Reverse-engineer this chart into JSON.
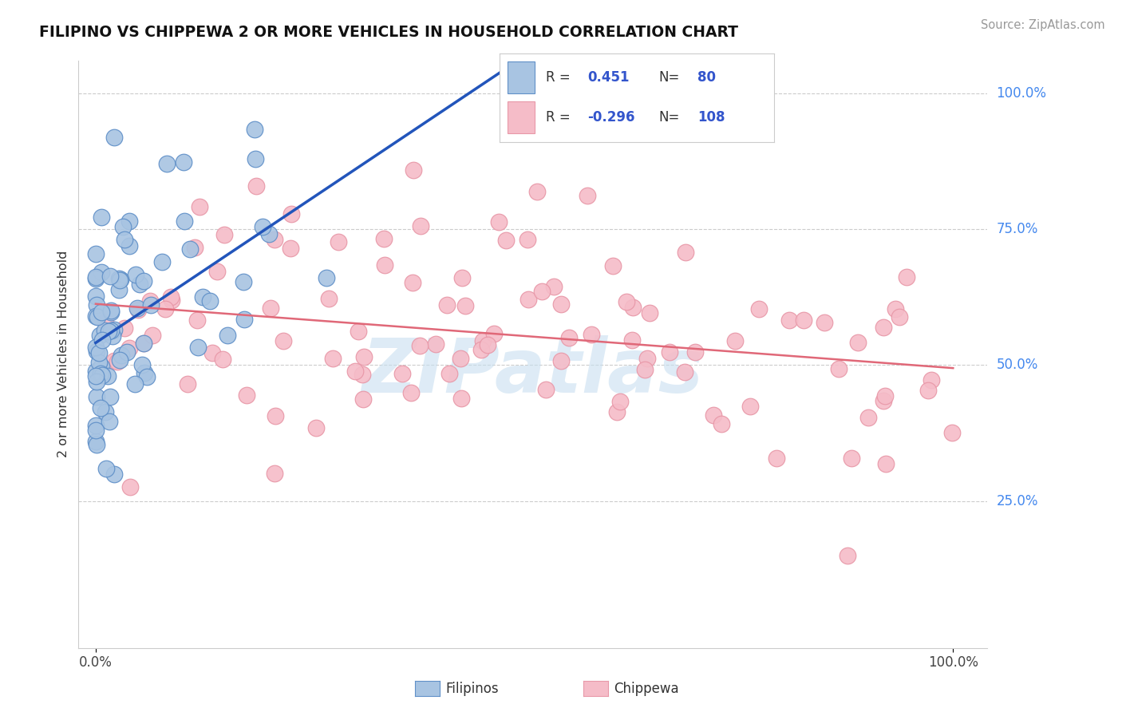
{
  "title": "FILIPINO VS CHIPPEWA 2 OR MORE VEHICLES IN HOUSEHOLD CORRELATION CHART",
  "source": "Source: ZipAtlas.com",
  "ylabel": "2 or more Vehicles in Household",
  "xlim": [
    0,
    1.0
  ],
  "ylim": [
    0,
    1.0
  ],
  "ytick_vals": [
    0.25,
    0.5,
    0.75,
    1.0
  ],
  "ytick_labels": [
    "25.0%",
    "50.0%",
    "75.0%",
    "100.0%"
  ],
  "xtick_vals": [
    0.0,
    1.0
  ],
  "xtick_labels": [
    "0.0%",
    "100.0%"
  ],
  "filipino_R": 0.451,
  "filipino_N": 80,
  "chippewa_R": -0.296,
  "chippewa_N": 108,
  "filipino_color": "#a8c4e2",
  "filipino_edge": "#6090c8",
  "chippewa_color": "#f5bcc8",
  "chippewa_edge": "#e898a8",
  "trend_blue": "#2255bb",
  "trend_pink": "#e06878",
  "legend_label_filipino": "Filipinos",
  "legend_label_chippewa": "Chippewa",
  "watermark": "ZIPatlas",
  "watermark_color": "#c8dff0",
  "grid_color": "#cccccc",
  "title_color": "#111111",
  "source_color": "#999999",
  "right_label_color": "#4488ee",
  "axis_color": "#cccccc"
}
